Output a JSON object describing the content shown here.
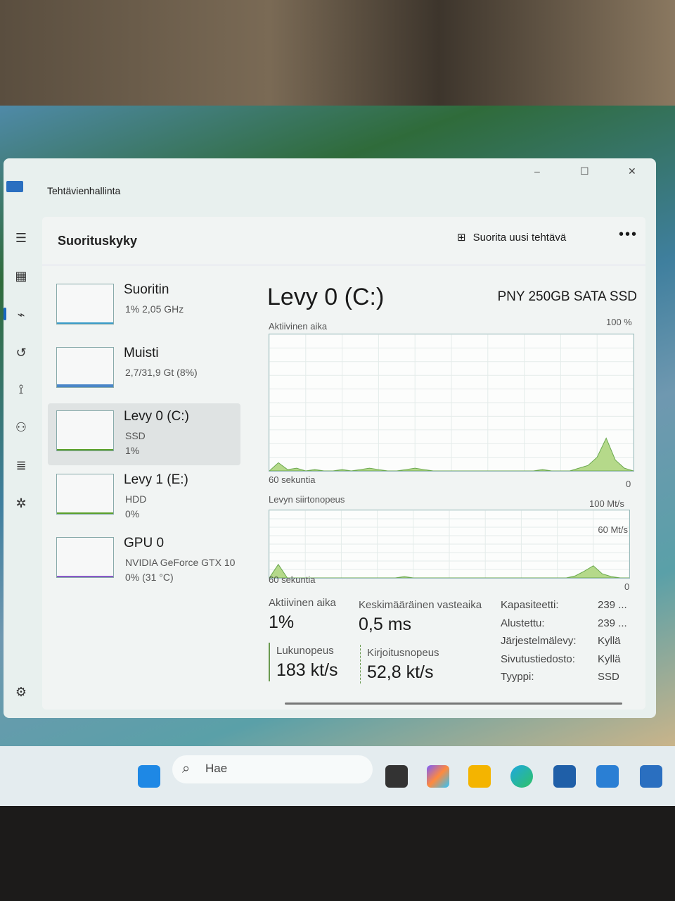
{
  "window": {
    "title": "Tehtävienhallinta",
    "minimize": "–",
    "maximize": "☐",
    "close": "✕"
  },
  "header": {
    "title": "Suorituskyky",
    "new_task": "Suorita uusi tehtävä",
    "more": "•••"
  },
  "sidebar": {
    "items": [
      {
        "name": "Suoritin",
        "sub1": "1%  2,05 GHz",
        "sub2": "",
        "color": "#3a9cc8"
      },
      {
        "name": "Muisti",
        "sub1": "2,7/31,9 Gt (8%)",
        "sub2": "",
        "color": "#4a86c8"
      },
      {
        "name": "Levy 0 (C:)",
        "sub1": "SSD",
        "sub2": "1%",
        "color": "#5aa02a",
        "selected": true
      },
      {
        "name": "Levy 1 (E:)",
        "sub1": "HDD",
        "sub2": "0%",
        "color": "#5aa02a"
      },
      {
        "name": "GPU 0",
        "sub1": "NVIDIA GeForce GTX 10",
        "sub2": "0%  (31 °C)",
        "color": "#8a5ac8"
      }
    ]
  },
  "main": {
    "title": "Levy 0 (C:)",
    "model": "PNY 250GB SATA SSD",
    "chart1": {
      "label": "Aktiivinen aika",
      "max": "100 %",
      "xlabel": "60 sekuntia",
      "min": "0",
      "values": [
        0,
        6,
        1,
        2,
        0,
        1,
        0,
        0,
        1,
        0,
        1,
        2,
        1,
        0,
        0,
        1,
        2,
        1,
        0,
        0,
        0,
        0,
        0,
        0,
        0,
        0,
        0,
        0,
        0,
        0,
        1,
        0,
        0,
        0,
        2,
        4,
        10,
        24,
        8,
        2,
        0
      ]
    },
    "chart2": {
      "label": "Levyn siirtonopeus",
      "max": "100 Mt/s",
      "mid": "60 Mt/s",
      "xlabel": "60 sekuntia",
      "min": "0",
      "values": [
        0,
        20,
        0,
        0,
        0,
        0,
        0,
        0,
        0,
        0,
        0,
        0,
        0,
        0,
        0,
        2,
        0,
        0,
        0,
        0,
        0,
        0,
        0,
        0,
        0,
        0,
        0,
        0,
        0,
        0,
        0,
        0,
        0,
        0,
        3,
        10,
        18,
        6,
        2,
        0,
        0
      ]
    },
    "stats": {
      "active_label": "Aktiivinen aika",
      "active": "1%",
      "resp_label": "Keskimääräinen vasteaika",
      "resp": "0,5 ms",
      "read_label": "Lukunopeus",
      "read": "183 kt/s",
      "write_label": "Kirjoitusnopeus",
      "write": "52,8 kt/s"
    },
    "props": [
      {
        "k": "Kapasiteetti:",
        "v": "239 ..."
      },
      {
        "k": "Alustettu:",
        "v": "239 ..."
      },
      {
        "k": "Järjestelmälevy:",
        "v": "Kyllä"
      },
      {
        "k": "Sivutustiedosto:",
        "v": "Kyllä"
      },
      {
        "k": "Tyyppi:",
        "v": "SSD"
      }
    ]
  },
  "taskbar": {
    "search_placeholder": "Hae"
  }
}
